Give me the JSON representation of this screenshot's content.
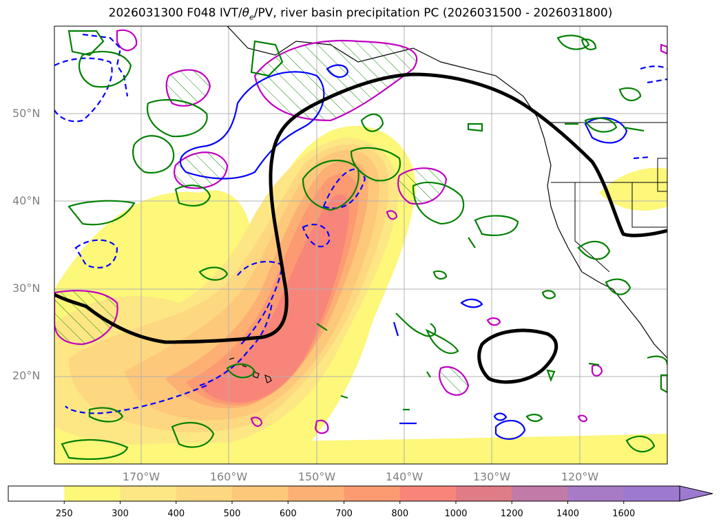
{
  "title_prefix": "2026031300 F048 IVT/",
  "title_theta": "θ",
  "title_theta_sub": "e",
  "title_suffix": "/PV, river basin precipitation PC (2026031500 - 2026031800)",
  "map": {
    "lat_labels": [
      "50°N",
      "40°N",
      "30°N",
      "20°N"
    ],
    "lon_labels": [
      "170°W",
      "160°W",
      "150°W",
      "140°W",
      "130°W",
      "120°W"
    ],
    "colors": {
      "coastline": "#000000",
      "jet_contour": "#000000",
      "pv_contour": "#c000c0",
      "vapor_contour": "#008000",
      "dashed_contour": "#0000ff",
      "grid": "#b0b0b0"
    }
  },
  "colorbar": {
    "ticks": [
      "250",
      "300",
      "400",
      "500",
      "600",
      "700",
      "800",
      "1000",
      "1200",
      "1400",
      "1600"
    ],
    "colors": [
      "#ffffff",
      "#fdf77a",
      "#fde784",
      "#fdd880",
      "#fdc87a",
      "#fdb074",
      "#fc9a72",
      "#f8857a",
      "#e07c86",
      "#c27aa8",
      "#a77bc6",
      "#9d7acf"
    ],
    "extend": "max"
  }
}
